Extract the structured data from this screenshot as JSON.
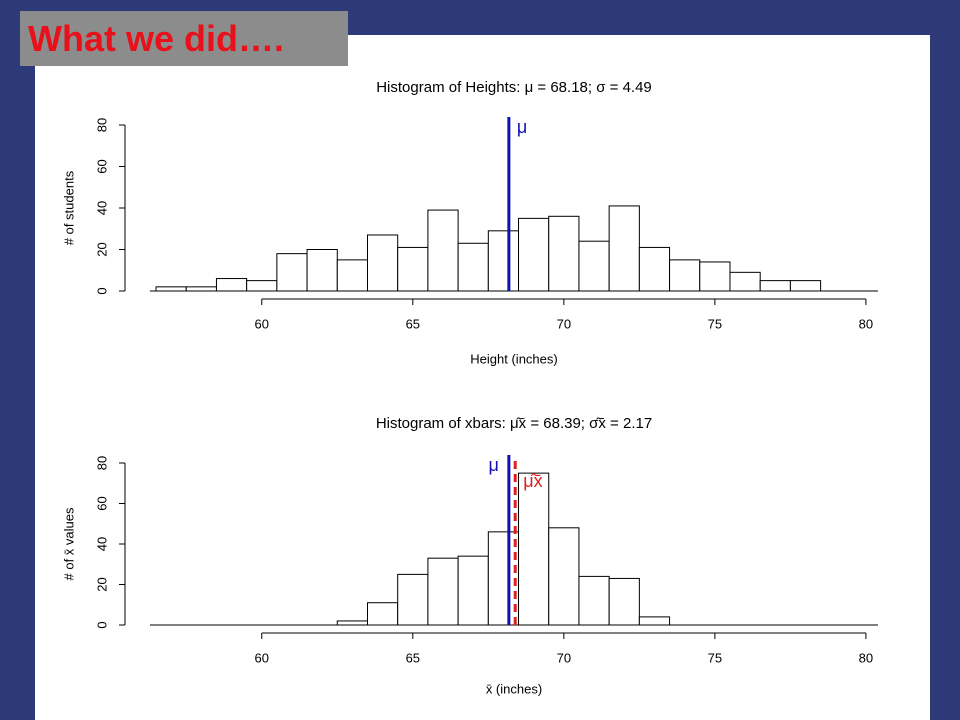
{
  "header": {
    "title": "What we did…."
  },
  "chart_data": [
    {
      "type": "histogram",
      "title": "Histogram of Heights:  μ = 68.18; σ = 4.49",
      "x_label": "Height (inches)",
      "y_label": "# of students",
      "bins": [
        56.5,
        57.5,
        58.5,
        59.5,
        60.5,
        61.5,
        62.5,
        63.5,
        64.5,
        65.5,
        66.5,
        67.5,
        68.5,
        69.5,
        70.5,
        71.5,
        72.5,
        73.5,
        74.5,
        75.5,
        76.5,
        77.5,
        78.5
      ],
      "counts": [
        2,
        2,
        6,
        5,
        18,
        20,
        15,
        27,
        21,
        39,
        23,
        29,
        35,
        36,
        24,
        41,
        21,
        15,
        14,
        9,
        5,
        5
      ],
      "color": "#ffffff",
      "xlim": [
        56.3,
        80.4
      ],
      "ylim": [
        0,
        80
      ],
      "xticks": [
        60,
        65,
        70,
        75,
        80
      ],
      "yticks": [
        0,
        20,
        40,
        60,
        80
      ],
      "reference_lines": [
        {
          "name": "μ",
          "value": 68.18,
          "color": "#1010b0"
        }
      ]
    },
    {
      "type": "histogram",
      "title": "Histogram of xbars:  μ̂x̄ = 68.39; σ̂x̄ = 2.17",
      "x_label": "x̄ (inches)",
      "y_label": "# of x̄ values",
      "bins": [
        62.5,
        63.5,
        64.5,
        65.5,
        66.5,
        67.5,
        68.5,
        69.5,
        70.5,
        71.5,
        72.5,
        73.5
      ],
      "counts": [
        2,
        11,
        25,
        33,
        34,
        46,
        75,
        48,
        24,
        23,
        4
      ],
      "color": "#ffffff",
      "xlim": [
        56.3,
        80.4
      ],
      "ylim": [
        0,
        80
      ],
      "xticks": [
        60,
        65,
        70,
        75,
        80
      ],
      "yticks": [
        0,
        20,
        40,
        60,
        80
      ],
      "reference_lines": [
        {
          "name": "μ",
          "value": 68.18,
          "color": "#1010b0"
        },
        {
          "name": "μ̂x̄",
          "value": 68.39,
          "color": "#e02020",
          "dashed": true
        }
      ]
    }
  ]
}
